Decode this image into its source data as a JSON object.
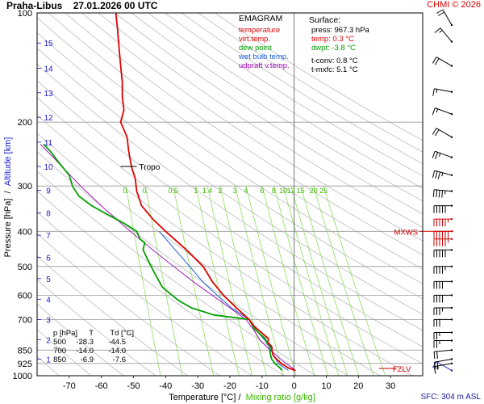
{
  "header": {
    "station": "Praha-Libus",
    "datetime": "27.01.2026 00 UTC",
    "credit": "CHMI © 2026",
    "sfc_asl": "SFC: 304 m ASL"
  },
  "legend": {
    "title": "EMAGRAM",
    "items": [
      {
        "label": "temperature",
        "color": "#e00000"
      },
      {
        "label": "virt.temp.",
        "color": "#e00000"
      },
      {
        "label": "dew point",
        "color": "#00a000"
      },
      {
        "label": "wet bulb temp.",
        "color": "#1a5ad8"
      },
      {
        "label": "udpraft v.temp.",
        "color": "#9a00b4"
      }
    ]
  },
  "surface": {
    "title": "Surface:",
    "press": "press: 967.3 hPa",
    "temp": "temp: 0.3 °C",
    "dwpt": "dwpt: -3.8 °C",
    "tconv": "t-conv: 0.8 °C",
    "tmxfc": "t-mxfc: 5.1 °C"
  },
  "table": {
    "header": [
      "p [hPa]",
      "T",
      "Td [°C]"
    ],
    "rows": [
      [
        "500",
        "-28.3",
        "-44.5"
      ],
      [
        "700",
        "-14.0",
        "-14.0"
      ],
      [
        "850",
        "-6.9",
        "-7.6"
      ]
    ]
  },
  "axis": {
    "xlabel": "Temperature [°C]",
    "xlabel_sep": "/",
    "xlabel2": "Mixing ratio [g/kg]",
    "ylabel": "Pressure [hPa]",
    "ylabel_sep": "/",
    "ylabel2": "Altitude [km]"
  },
  "chart_data": {
    "type": "line",
    "diagram": "emagram",
    "title": "Praha-Libus 27.01.2026 00 UTC",
    "x_scale": "linear",
    "y_scale": "log",
    "xlim": [
      -80,
      40
    ],
    "ylim": [
      1000,
      100
    ],
    "x_ticks": [
      -70,
      -60,
      -50,
      -40,
      -30,
      -20,
      -10,
      0,
      10,
      20,
      30
    ],
    "y_ticks": [
      100,
      200,
      300,
      400,
      500,
      600,
      700,
      850,
      925,
      1000
    ],
    "altitude_ticks": [
      {
        "km": 1,
        "p": 900
      },
      {
        "km": 2,
        "p": 795
      },
      {
        "km": 3,
        "p": 700
      },
      {
        "km": 4,
        "p": 616
      },
      {
        "km": 5,
        "p": 540
      },
      {
        "km": 6,
        "p": 472
      },
      {
        "km": 7,
        "p": 410
      },
      {
        "km": 8,
        "p": 356
      },
      {
        "km": 9,
        "p": 308
      },
      {
        "km": 10,
        "p": 265
      },
      {
        "km": 11,
        "p": 227
      },
      {
        "km": 12,
        "p": 194
      },
      {
        "km": 13,
        "p": 166
      },
      {
        "km": 14,
        "p": 142
      },
      {
        "km": 15,
        "p": 121
      }
    ],
    "mixing_ratio_labels": [
      "0.",
      "0.",
      "0.5",
      "1",
      "1.4",
      "2",
      "3",
      "4",
      "6",
      "8",
      "10",
      "12",
      "15",
      "20",
      "25"
    ],
    "mixing_ratio_values": [
      0.1,
      0.2,
      0.5,
      1,
      1.4,
      2,
      3,
      4,
      6,
      8,
      10,
      12,
      15,
      20,
      25
    ],
    "series": [
      {
        "name": "temperature",
        "color": "#e00000",
        "points": [
          [
            967.3,
            0.3
          ],
          [
            950,
            -2.0
          ],
          [
            925,
            -4.0
          ],
          [
            900,
            -5.5
          ],
          [
            880,
            -6.5
          ],
          [
            860,
            -6.8
          ],
          [
            850,
            -6.9
          ],
          [
            830,
            -7.0
          ],
          [
            810,
            -8.2
          ],
          [
            790,
            -8.0
          ],
          [
            770,
            -9.5
          ],
          [
            750,
            -11.0
          ],
          [
            730,
            -12.5
          ],
          [
            700,
            -14.0
          ],
          [
            650,
            -18.0
          ],
          [
            600,
            -22.0
          ],
          [
            550,
            -25.5
          ],
          [
            500,
            -28.3
          ],
          [
            450,
            -33.5
          ],
          [
            400,
            -40.0
          ],
          [
            370,
            -44.0
          ],
          [
            340,
            -47.5
          ],
          [
            310,
            -49.0
          ],
          [
            285,
            -49.5
          ],
          [
            268,
            -50.5
          ],
          [
            255,
            -51.0
          ],
          [
            240,
            -51.5
          ],
          [
            220,
            -52.0
          ],
          [
            200,
            -54.0
          ],
          [
            185,
            -53.0
          ],
          [
            170,
            -53.5
          ],
          [
            155,
            -53.5
          ],
          [
            140,
            -54.0
          ],
          [
            125,
            -54.5
          ],
          [
            110,
            -55.0
          ],
          [
            100,
            -55.5
          ]
        ]
      },
      {
        "name": "dew point",
        "color": "#00a000",
        "points": [
          [
            967.3,
            -3.8
          ],
          [
            950,
            -4.5
          ],
          [
            925,
            -6.0
          ],
          [
            900,
            -7.0
          ],
          [
            880,
            -7.3
          ],
          [
            860,
            -7.5
          ],
          [
            850,
            -7.6
          ],
          [
            830,
            -7.4
          ],
          [
            810,
            -8.5
          ],
          [
            790,
            -9.0
          ],
          [
            770,
            -10.5
          ],
          [
            740,
            -12.5
          ],
          [
            700,
            -14.0
          ],
          [
            680,
            -25.0
          ],
          [
            650,
            -32.0
          ],
          [
            620,
            -36.0
          ],
          [
            600,
            -38.0
          ],
          [
            570,
            -41.0
          ],
          [
            550,
            -42.0
          ],
          [
            520,
            -43.5
          ],
          [
            500,
            -44.5
          ],
          [
            470,
            -46.0
          ],
          [
            450,
            -47.0
          ],
          [
            430,
            -46.5
          ],
          [
            420,
            -48.0
          ],
          [
            400,
            -49.0
          ],
          [
            380,
            -53.0
          ],
          [
            360,
            -58.0
          ],
          [
            340,
            -63.0
          ],
          [
            320,
            -67.0
          ],
          [
            300,
            -69.0
          ],
          [
            280,
            -70.0
          ],
          [
            260,
            -73.0
          ],
          [
            240,
            -76.0
          ],
          [
            230,
            -78.0
          ]
        ]
      },
      {
        "name": "wet bulb temp.",
        "color": "#1a5ad8",
        "points": [
          [
            967.3,
            -1.8
          ],
          [
            925,
            -5.0
          ],
          [
            850,
            -7.2
          ],
          [
            800,
            -9.0
          ],
          [
            750,
            -11.8
          ],
          [
            700,
            -14.0
          ],
          [
            650,
            -19.5
          ],
          [
            600,
            -24.0
          ],
          [
            550,
            -28.5
          ],
          [
            500,
            -32.5
          ],
          [
            450,
            -37.0
          ],
          [
            400,
            -42.0
          ]
        ]
      },
      {
        "name": "udpraft v.temp.",
        "color": "#9a00b4",
        "points": [
          [
            967.3,
            0.5
          ],
          [
            925,
            -2.5
          ],
          [
            850,
            -7.5
          ],
          [
            800,
            -10.5
          ],
          [
            750,
            -12.5
          ],
          [
            700,
            -15.0
          ],
          [
            650,
            -20.0
          ],
          [
            600,
            -25.5
          ],
          [
            550,
            -31.5
          ],
          [
            500,
            -37.5
          ],
          [
            450,
            -44.0
          ],
          [
            400,
            -51.0
          ],
          [
            350,
            -58.5
          ],
          [
            300,
            -66.5
          ],
          [
            250,
            -75.0
          ],
          [
            230,
            -79.0
          ]
        ]
      }
    ],
    "annotations": [
      {
        "text": "Tropo",
        "p": 265,
        "t": -50.5
      },
      {
        "text": "MXWS",
        "p": 400
      },
      {
        "text": "FZLV",
        "p": 955
      }
    ],
    "wind_barbs": [
      {
        "p": 967,
        "speed_kt": 10,
        "dir": 300
      },
      {
        "p": 925,
        "speed_kt": 15,
        "dir": 260
      },
      {
        "p": 900,
        "speed_kt": 20,
        "dir": 260
      },
      {
        "p": 850,
        "speed_kt": 20,
        "dir": 265
      },
      {
        "p": 800,
        "speed_kt": 25,
        "dir": 270
      },
      {
        "p": 760,
        "speed_kt": 25,
        "dir": 270
      },
      {
        "p": 700,
        "speed_kt": 30,
        "dir": 270
      },
      {
        "p": 650,
        "speed_kt": 35,
        "dir": 270
      },
      {
        "p": 600,
        "speed_kt": 40,
        "dir": 270
      },
      {
        "p": 550,
        "speed_kt": 40,
        "dir": 270
      },
      {
        "p": 500,
        "speed_kt": 45,
        "dir": 270
      },
      {
        "p": 450,
        "speed_kt": 50,
        "dir": 270
      },
      {
        "p": 420,
        "speed_kt": 55,
        "dir": 270
      },
      {
        "p": 400,
        "speed_kt": 60,
        "dir": 270
      },
      {
        "p": 370,
        "speed_kt": 55,
        "dir": 270
      },
      {
        "p": 340,
        "speed_kt": 50,
        "dir": 270
      },
      {
        "p": 310,
        "speed_kt": 45,
        "dir": 275
      },
      {
        "p": 280,
        "speed_kt": 35,
        "dir": 285
      },
      {
        "p": 250,
        "speed_kt": 25,
        "dir": 290
      },
      {
        "p": 220,
        "speed_kt": 20,
        "dir": 300
      },
      {
        "p": 190,
        "speed_kt": 15,
        "dir": 290
      },
      {
        "p": 165,
        "speed_kt": 15,
        "dir": 280
      },
      {
        "p": 140,
        "speed_kt": 20,
        "dir": 300
      },
      {
        "p": 120,
        "speed_kt": 15,
        "dir": 320
      },
      {
        "p": 108,
        "speed_kt": 20,
        "dir": 330
      }
    ]
  }
}
